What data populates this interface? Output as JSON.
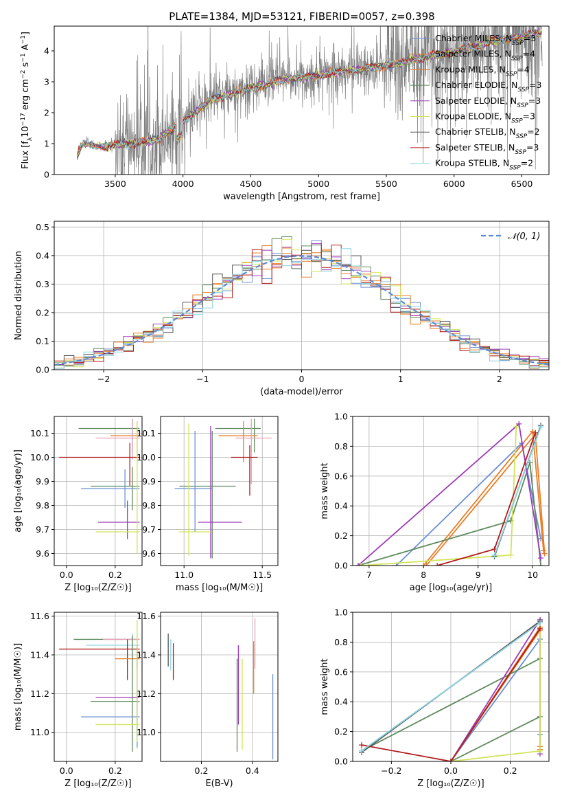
{
  "title": "PLATE=1384, MJD=53121, FIBERID=0057, z=0.398",
  "colors": {
    "chabrier_miles": "#6a8fd6",
    "salpeter_miles": "#e87d26",
    "kroupa_miles": "#e87d26",
    "chabrier_elodie": "#5b8a5b",
    "salpeter_elodie": "#9b3ab8",
    "kroupa_elodie": "#d2e35a",
    "chabrier_stelib": "#555555",
    "salpeter_stelib": "#b01c1c",
    "kroupa_stelib": "#8ad3e3",
    "data": "#808080",
    "gauss": "#5b8ad6",
    "grid": "#b0b0b0"
  },
  "chart_data": [
    {
      "id": "spectrum",
      "type": "line",
      "xlabel": "wavelength [Angstrom, rest frame]",
      "ylabel_html": "Flux [f<tspan baseline-shift='sub' font-size='9'>λ</tspan>10<tspan baseline-shift='super' font-size='9'>−17</tspan> erg cm<tspan baseline-shift='super' font-size='9'>−2</tspan> s<tspan baseline-shift='super' font-size='9'>−1</tspan> A<tspan baseline-shift='super' font-size='9'>−1</tspan>]",
      "xlim": [
        3050,
        6700
      ],
      "ylim": [
        0,
        4.8
      ],
      "xticks": [
        3500,
        4000,
        4500,
        5000,
        5500,
        6000,
        6500
      ],
      "yticks": [
        0,
        1,
        2,
        3,
        4
      ],
      "data_start": 3220,
      "data_end": 6650,
      "continuum": [
        [
          3220,
          0.6
        ],
        [
          3260,
          1.0
        ],
        [
          3400,
          0.9
        ],
        [
          3600,
          1.0
        ],
        [
          3800,
          1.1
        ],
        [
          4000,
          1.7
        ],
        [
          4200,
          2.4
        ],
        [
          4500,
          2.8
        ],
        [
          4800,
          3.1
        ],
        [
          5000,
          3.2
        ],
        [
          5300,
          3.4
        ],
        [
          5600,
          3.6
        ],
        [
          5900,
          3.9
        ],
        [
          6100,
          4.1
        ],
        [
          6400,
          4.4
        ],
        [
          6650,
          4.6
        ]
      ],
      "legend": [
        {
          "label": "Chabrier MILES, N",
          "sub": "SSP",
          "suffix": "=3",
          "color": "#6a8fd6"
        },
        {
          "label": "Salpeter MILES, N",
          "sub": "SSP",
          "suffix": "=4",
          "color": "#e87d26"
        },
        {
          "label": "Kroupa MILES, N",
          "sub": "SSP",
          "suffix": "=4",
          "color": "#e87d26"
        },
        {
          "label": "Chabrier ELODIE, N",
          "sub": "SSP",
          "suffix": "=3",
          "color": "#5b8a5b"
        },
        {
          "label": "Salpeter ELODIE, N",
          "sub": "SSP",
          "suffix": "=3",
          "color": "#9b3ab8"
        },
        {
          "label": "Kroupa ELODIE, N",
          "sub": "SSP",
          "suffix": "=3",
          "color": "#d2e35a"
        },
        {
          "label": "Chabrier STELIB, N",
          "sub": "SSP",
          "suffix": "=2",
          "color": "#555555"
        },
        {
          "label": "Salpeter STELIB, N",
          "sub": "SSP",
          "suffix": "=3",
          "color": "#b01c1c"
        },
        {
          "label": "Kroupa STELIB, N",
          "sub": "SSP",
          "suffix": "=2",
          "color": "#8ad3e3"
        }
      ]
    },
    {
      "id": "residuals",
      "type": "line",
      "xlabel": "(data-model)/error",
      "ylabel": "Normed distribution",
      "xlim": [
        -2.5,
        2.5
      ],
      "ylim": [
        0,
        0.52
      ],
      "xticks": [
        -2,
        -1,
        0,
        1,
        2
      ],
      "yticks": [
        0.0,
        0.1,
        0.2,
        0.3,
        0.4,
        0.5
      ],
      "legend": "𝒩(0, 1)",
      "bin_width": 0.1
    },
    {
      "id": "age_vs_Z",
      "type": "scatter",
      "xlabel": "Z [log₁₀(Z/Z☉)]",
      "ylabel": "age  [log₁₀(age/yr)]",
      "xlim": [
        -0.05,
        0.31
      ],
      "ylim": [
        9.55,
        10.17
      ],
      "xticks": [
        0.0,
        0.2
      ],
      "yticks": [
        9.6,
        9.7,
        9.8,
        9.9,
        10.0,
        10.1
      ],
      "errorbars": [
        {
          "x": 0.27,
          "y": 10.12,
          "xl": 0.05,
          "xh": 0.3,
          "yl": 10.02,
          "yh": 10.16,
          "c": "#5b8a5b"
        },
        {
          "x": 0.29,
          "y": 10.09,
          "xl": 0.18,
          "xh": 0.3,
          "yl": 10.02,
          "yh": 10.15,
          "c": "#e87d26"
        },
        {
          "x": 0.27,
          "y": 10.08,
          "xl": 0.12,
          "xh": 0.3,
          "yl": 9.99,
          "yh": 10.16,
          "c": "#e8a0b8"
        },
        {
          "x": 0.26,
          "y": 10.0,
          "xl": -0.03,
          "xh": 0.3,
          "yl": 9.88,
          "yh": 10.06,
          "c": "#b01c1c"
        },
        {
          "x": 0.27,
          "y": 9.88,
          "xl": 0.1,
          "xh": 0.3,
          "yl": 9.78,
          "yh": 9.96,
          "c": "#5b8a5b"
        },
        {
          "x": 0.24,
          "y": 9.87,
          "xl": 0.06,
          "xh": 0.3,
          "yl": 9.79,
          "yh": 9.95,
          "c": "#6a8fd6"
        },
        {
          "x": 0.25,
          "y": 9.73,
          "xl": 0.13,
          "xh": 0.3,
          "yl": 9.66,
          "yh": 9.82,
          "c": "#9b3ab8"
        },
        {
          "x": 0.29,
          "y": 9.69,
          "xl": 0.12,
          "xh": 0.3,
          "yl": 9.6,
          "yh": 10.15,
          "c": "#d2e35a"
        }
      ]
    },
    {
      "id": "age_vs_mass",
      "type": "scatter",
      "xlabel": "mass [log₁₀(M/M☉)]",
      "ylabel": "",
      "xlim": [
        10.85,
        11.6
      ],
      "ylim": [
        9.55,
        10.17
      ],
      "xticks": [
        11.0,
        11.5
      ],
      "yticks": [
        9.6,
        9.7,
        9.8,
        9.9,
        10.0,
        10.1
      ],
      "errorbars": [
        {
          "x": 11.45,
          "y": 10.12,
          "xl": 11.2,
          "xh": 11.49,
          "yl": 10.02,
          "yh": 10.16,
          "c": "#5b8a5b"
        },
        {
          "x": 11.38,
          "y": 10.09,
          "xl": 11.22,
          "xh": 11.47,
          "yl": 9.98,
          "yh": 10.15,
          "c": "#e87d26"
        },
        {
          "x": 11.43,
          "y": 10.08,
          "xl": 11.33,
          "xh": 11.56,
          "yl": 9.89,
          "yh": 10.16,
          "c": "#e8a0b8"
        },
        {
          "x": 11.42,
          "y": 10.0,
          "xl": 11.3,
          "xh": 11.47,
          "yl": 9.84,
          "yh": 10.05,
          "c": "#b01c1c"
        },
        {
          "x": 11.18,
          "y": 9.88,
          "xl": 10.97,
          "xh": 11.33,
          "yl": 9.58,
          "yh": 10.11,
          "c": "#5b8a5b"
        },
        {
          "x": 11.07,
          "y": 9.87,
          "xl": 10.94,
          "xh": 11.18,
          "yl": 9.69,
          "yh": 10.11,
          "c": "#6a8fd6"
        },
        {
          "x": 11.17,
          "y": 9.73,
          "xl": 11.09,
          "xh": 11.37,
          "yl": 9.58,
          "yh": 10.13,
          "c": "#9b3ab8"
        },
        {
          "x": 11.03,
          "y": 9.69,
          "xl": 10.97,
          "xh": 11.17,
          "yl": 9.59,
          "yh": 10.14,
          "c": "#d2e35a"
        }
      ]
    },
    {
      "id": "weight_vs_age",
      "type": "line",
      "xlabel": "age  [log₁₀(age/yr)]",
      "ylabel": "mass weight",
      "xlim": [
        6.7,
        10.3
      ],
      "ylim": [
        0,
        1.0
      ],
      "xticks": [
        7,
        8,
        9,
        10
      ],
      "yticks": [
        0.0,
        0.2,
        0.4,
        0.6,
        0.8,
        1.0
      ],
      "series": [
        {
          "name": "Chabrier MILES",
          "c": "#6a8fd6",
          "pts": [
            [
              7.5,
              0.0
            ],
            [
              9.8,
              0.82
            ],
            [
              10.15,
              0.18
            ]
          ]
        },
        {
          "name": "Salpeter MILES",
          "c": "#e87d26",
          "pts": [
            [
              8.0,
              0.0
            ],
            [
              10.0,
              0.9
            ],
            [
              10.2,
              0.1
            ]
          ]
        },
        {
          "name": "Kroupa MILES",
          "c": "#e87d26",
          "pts": [
            [
              8.05,
              0.0
            ],
            [
              10.05,
              0.88
            ],
            [
              10.22,
              0.08
            ]
          ]
        },
        {
          "name": "Chabrier ELODIE",
          "c": "#5b8a5b",
          "pts": [
            [
              6.8,
              0.0
            ],
            [
              9.6,
              0.3
            ],
            [
              9.95,
              0.69
            ],
            [
              10.15,
              0.0
            ]
          ]
        },
        {
          "name": "Salpeter ELODIE",
          "c": "#9b3ab8",
          "pts": [
            [
              6.8,
              0.0
            ],
            [
              9.75,
              0.95
            ],
            [
              10.15,
              0.05
            ]
          ]
        },
        {
          "name": "Kroupa ELODIE",
          "c": "#d2e35a",
          "pts": [
            [
              6.85,
              0.0
            ],
            [
              9.6,
              0.07
            ],
            [
              9.7,
              0.93
            ]
          ]
        },
        {
          "name": "Chabrier STELIB",
          "c": "#555555",
          "pts": [
            [
              9.3,
              0.06
            ],
            [
              10.15,
              0.94
            ]
          ]
        },
        {
          "name": "Salpeter STELIB",
          "c": "#b01c1c",
          "pts": [
            [
              8.25,
              0.0
            ],
            [
              9.3,
              0.11
            ],
            [
              10.05,
              0.89
            ]
          ]
        },
        {
          "name": "Kroupa STELIB",
          "c": "#8ad3e3",
          "pts": [
            [
              9.3,
              0.07
            ],
            [
              10.15,
              0.93
            ]
          ]
        }
      ]
    },
    {
      "id": "mass_vs_Z",
      "type": "scatter",
      "xlabel": "Z [log₁₀(Z/Z☉)]",
      "ylabel": "mass [log₁₀(M/M☉)]",
      "xlim": [
        -0.05,
        0.31
      ],
      "ylim": [
        10.85,
        11.62
      ],
      "xticks": [
        0.0,
        0.2
      ],
      "yticks": [
        11.0,
        11.2,
        11.4,
        11.6
      ],
      "errorbars": [
        {
          "x": 0.27,
          "y": 11.48,
          "xl": 0.03,
          "xh": 0.3,
          "yl": 11.34,
          "yh": 11.5,
          "c": "#5b8a5b"
        },
        {
          "x": 0.29,
          "y": 11.48,
          "xl": 0.15,
          "xh": 0.3,
          "yl": 11.35,
          "yh": 11.5,
          "c": "#e8a0b8"
        },
        {
          "x": 0.27,
          "y": 11.45,
          "xl": 0.08,
          "xh": 0.3,
          "yl": 11.33,
          "yh": 11.51,
          "c": "#8ad3e3"
        },
        {
          "x": 0.25,
          "y": 11.43,
          "xl": -0.03,
          "xh": 0.3,
          "yl": 11.27,
          "yh": 11.48,
          "c": "#b01c1c"
        },
        {
          "x": 0.29,
          "y": 11.38,
          "xl": 0.2,
          "xh": 0.3,
          "yl": 11.32,
          "yh": 11.45,
          "c": "#e87d26"
        },
        {
          "x": 0.27,
          "y": 11.16,
          "xl": 0.1,
          "xh": 0.3,
          "yl": 10.9,
          "yh": 11.5,
          "c": "#5b8a5b"
        },
        {
          "x": 0.29,
          "y": 11.18,
          "xl": 0.12,
          "xh": 0.3,
          "yl": 10.98,
          "yh": 11.45,
          "c": "#9b3ab8"
        },
        {
          "x": 0.29,
          "y": 11.08,
          "xl": 0.06,
          "xh": 0.3,
          "yl": 10.92,
          "yh": 11.22,
          "c": "#6a8fd6"
        },
        {
          "x": 0.29,
          "y": 11.04,
          "xl": 0.12,
          "xh": 0.3,
          "yl": 10.95,
          "yh": 11.58,
          "c": "#d2e35a"
        }
      ]
    },
    {
      "id": "mass_vs_EBV",
      "type": "scatter",
      "xlabel": "E(B-V)",
      "ylabel": "",
      "xlim": [
        0.04,
        0.5
      ],
      "ylim": [
        10.85,
        11.62
      ],
      "xticks": [
        0.2,
        0.4
      ],
      "yticks": [
        11.0,
        11.2,
        11.4,
        11.6
      ],
      "errorbars": [
        {
          "x": 0.07,
          "y": 11.42,
          "xl": 0.07,
          "xh": 0.07,
          "yl": 11.34,
          "yh": 11.51,
          "c": "#555555"
        },
        {
          "x": 0.08,
          "y": 11.4,
          "xl": 0.08,
          "xh": 0.08,
          "yl": 11.32,
          "yh": 11.48,
          "c": "#8ad3e3"
        },
        {
          "x": 0.09,
          "y": 11.36,
          "xl": 0.09,
          "xh": 0.09,
          "yl": 11.27,
          "yh": 11.46,
          "c": "#b01c1c"
        },
        {
          "x": 0.34,
          "y": 11.15,
          "xl": 0.34,
          "xh": 0.34,
          "yl": 10.9,
          "yh": 11.38,
          "c": "#5b8a5b"
        },
        {
          "x": 0.345,
          "y": 11.2,
          "xl": 0.345,
          "xh": 0.345,
          "yl": 11.04,
          "yh": 11.45,
          "c": "#9b3ab8"
        },
        {
          "x": 0.36,
          "y": 11.1,
          "xl": 0.36,
          "xh": 0.36,
          "yl": 10.91,
          "yh": 11.38,
          "c": "#d2e35a"
        },
        {
          "x": 0.405,
          "y": 11.3,
          "xl": 0.405,
          "xh": 0.405,
          "yl": 11.2,
          "yh": 11.47,
          "c": "#e87d26"
        },
        {
          "x": 0.41,
          "y": 11.45,
          "xl": 0.41,
          "xh": 0.41,
          "yl": 11.33,
          "yh": 11.59,
          "c": "#e8a0b8"
        },
        {
          "x": 0.48,
          "y": 11.05,
          "xl": 0.48,
          "xh": 0.48,
          "yl": 10.86,
          "yh": 11.3,
          "c": "#6a8fd6"
        }
      ]
    },
    {
      "id": "weight_vs_Z",
      "type": "line",
      "xlabel": "Z [log₁₀(Z/Z☉)]",
      "ylabel": "mass weight",
      "xlim": [
        -0.33,
        0.33
      ],
      "ylim": [
        0,
        1.0
      ],
      "xticks": [
        -0.2,
        0.0,
        0.2
      ],
      "yticks": [
        0.0,
        0.2,
        0.4,
        0.6,
        0.8,
        1.0
      ],
      "series": [
        {
          "name": "Chabrier MILES",
          "c": "#6a8fd6",
          "pts": [
            [
              0.0,
              0.0
            ],
            [
              0.3,
              0.82
            ],
            [
              0.3,
              0.18
            ]
          ]
        },
        {
          "name": "Salpeter MILES",
          "c": "#e87d26",
          "pts": [
            [
              0.0,
              0.0
            ],
            [
              0.3,
              0.9
            ],
            [
              0.3,
              0.1
            ]
          ]
        },
        {
          "name": "Kroupa MILES",
          "c": "#e87d26",
          "pts": [
            [
              0.0,
              0.0
            ],
            [
              0.3,
              0.88
            ],
            [
              0.3,
              0.08
            ]
          ]
        },
        {
          "name": "Chabrier ELODIE",
          "c": "#5b8a5b",
          "pts": [
            [
              0.0,
              0.0
            ],
            [
              0.3,
              0.3
            ],
            [
              0.3,
              0.69
            ],
            [
              -0.3,
              0.07
            ],
            [
              0.3,
              0.93
            ]
          ]
        },
        {
          "name": "Salpeter ELODIE",
          "c": "#9b3ab8",
          "pts": [
            [
              0.0,
              0.0
            ],
            [
              0.3,
              0.95
            ],
            [
              0.3,
              0.05
            ]
          ]
        },
        {
          "name": "Kroupa ELODIE",
          "c": "#d2e35a",
          "pts": [
            [
              0.0,
              0.0
            ],
            [
              0.3,
              0.07
            ],
            [
              0.3,
              0.93
            ]
          ]
        },
        {
          "name": "Chabrier STELIB",
          "c": "#555555",
          "pts": [
            [
              -0.3,
              0.06
            ],
            [
              0.3,
              0.94
            ]
          ]
        },
        {
          "name": "Salpeter STELIB",
          "c": "#b01c1c",
          "pts": [
            [
              -0.3,
              0.11
            ],
            [
              0.0,
              0.0
            ],
            [
              0.3,
              0.89
            ]
          ]
        },
        {
          "name": "Kroupa STELIB",
          "c": "#8ad3e3",
          "pts": [
            [
              -0.3,
              0.07
            ],
            [
              0.3,
              0.93
            ]
          ]
        }
      ]
    }
  ]
}
